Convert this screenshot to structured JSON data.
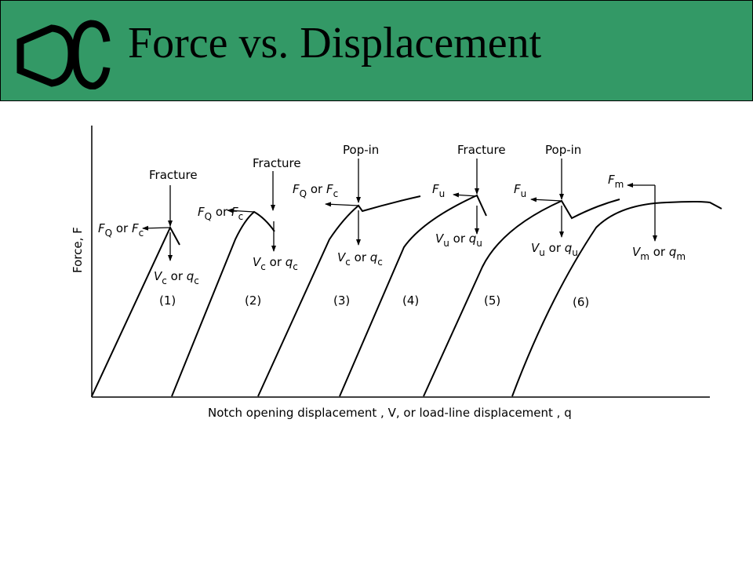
{
  "header": {
    "title": "Force vs. Displacement",
    "logo_text": "DC",
    "background": "#339966"
  },
  "diagram": {
    "y_axis_label": "Force, F",
    "x_axis_label": "Notch opening displacement , V, or load-line displacement , q",
    "curve_labels": [
      "(1)",
      "(2)",
      "(3)",
      "(4)",
      "(5)",
      "(6)"
    ],
    "event_labels": [
      "Fracture",
      "Fracture",
      "Pop-in",
      "Fracture",
      "Pop-in"
    ],
    "force_labels": [
      {
        "a": "F",
        "as": "Q",
        "mid": "or",
        "b": "F",
        "bs": "c"
      },
      {
        "a": "F",
        "as": "Q",
        "mid": "or",
        "b": "F",
        "bs": "c"
      },
      {
        "a": "F",
        "as": "Q",
        "mid": "or",
        "b": "F",
        "bs": "c"
      },
      {
        "a": "F",
        "as": "u"
      },
      {
        "a": "F",
        "as": "u"
      },
      {
        "a": "F",
        "as": "m"
      }
    ],
    "disp_labels": [
      {
        "a": "V",
        "as": "c",
        "mid": "or",
        "b": "q",
        "bs": "c"
      },
      {
        "a": "V",
        "as": "c",
        "mid": "or",
        "b": "q",
        "bs": "c"
      },
      {
        "a": "V",
        "as": "c",
        "mid": "or",
        "b": "q",
        "bs": "c"
      },
      {
        "a": "V",
        "as": "u",
        "mid": "or",
        "b": "q",
        "bs": "u"
      },
      {
        "a": "V",
        "as": "u",
        "mid": "or",
        "b": "q",
        "bs": "u"
      },
      {
        "a": "V",
        "as": "m",
        "mid": "or",
        "b": "q",
        "bs": "m"
      }
    ]
  }
}
